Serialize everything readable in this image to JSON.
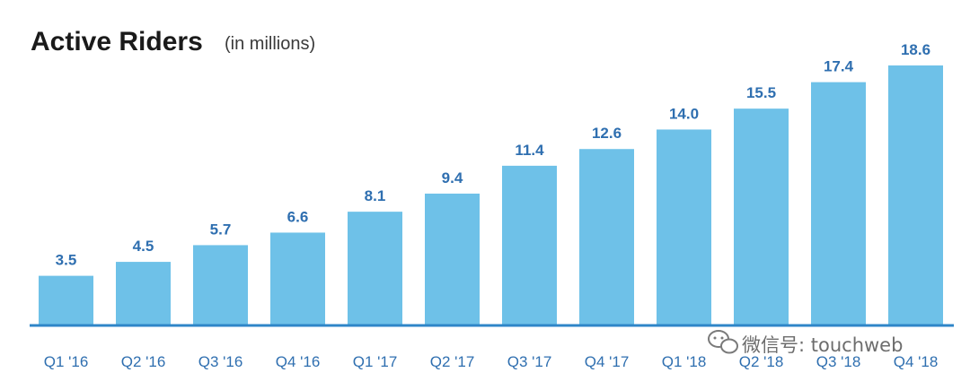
{
  "chart_data": {
    "type": "bar",
    "title": "Active Riders",
    "subtitle": "(in millions)",
    "categories": [
      "Q1 '16",
      "Q2 '16",
      "Q3 '16",
      "Q4 '16",
      "Q1 '17",
      "Q2 '17",
      "Q3 '17",
      "Q4 '17",
      "Q1 '18",
      "Q2 '18",
      "Q3 '18",
      "Q4 '18"
    ],
    "values": [
      3.5,
      4.5,
      5.7,
      6.6,
      8.1,
      9.4,
      11.4,
      12.6,
      14.0,
      15.5,
      17.4,
      18.6
    ],
    "value_labels": [
      "3.5",
      "4.5",
      "5.7",
      "6.6",
      "8.1",
      "9.4",
      "11.4",
      "12.6",
      "14.0",
      "15.5",
      "17.4",
      "18.6"
    ],
    "xlabel": "",
    "ylabel": "",
    "ylim": [
      0,
      18.6
    ],
    "grid": false,
    "legend": "none",
    "colors": {
      "bar": "#6ec1e8",
      "baseline": "#2f86c8",
      "label": "#2f6fb0"
    }
  },
  "watermark": {
    "text": "微信号: touchweb",
    "icon": "wechat-icon"
  }
}
